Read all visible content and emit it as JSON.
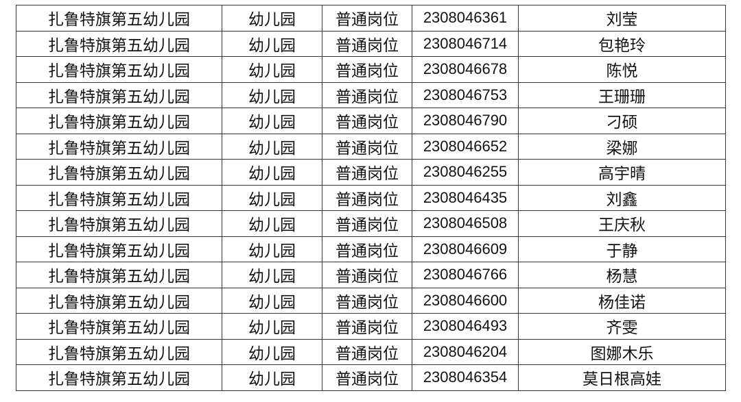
{
  "table": {
    "rows": [
      [
        "扎鲁特旗第五幼儿园",
        "幼儿园",
        "普通岗位",
        "2308046361",
        "刘莹"
      ],
      [
        "扎鲁特旗第五幼儿园",
        "幼儿园",
        "普通岗位",
        "2308046714",
        "包艳玲"
      ],
      [
        "扎鲁特旗第五幼儿园",
        "幼儿园",
        "普通岗位",
        "2308046678",
        "陈悦"
      ],
      [
        "扎鲁特旗第五幼儿园",
        "幼儿园",
        "普通岗位",
        "2308046753",
        "王珊珊"
      ],
      [
        "扎鲁特旗第五幼儿园",
        "幼儿园",
        "普通岗位",
        "2308046790",
        "刁硕"
      ],
      [
        "扎鲁特旗第五幼儿园",
        "幼儿园",
        "普通岗位",
        "2308046652",
        "梁娜"
      ],
      [
        "扎鲁特旗第五幼儿园",
        "幼儿园",
        "普通岗位",
        "2308046255",
        "高宇晴"
      ],
      [
        "扎鲁特旗第五幼儿园",
        "幼儿园",
        "普通岗位",
        "2308046435",
        "刘鑫"
      ],
      [
        "扎鲁特旗第五幼儿园",
        "幼儿园",
        "普通岗位",
        "2308046508",
        "王庆秋"
      ],
      [
        "扎鲁特旗第五幼儿园",
        "幼儿园",
        "普通岗位",
        "2308046609",
        "于静"
      ],
      [
        "扎鲁特旗第五幼儿园",
        "幼儿园",
        "普通岗位",
        "2308046766",
        "杨慧"
      ],
      [
        "扎鲁特旗第五幼儿园",
        "幼儿园",
        "普通岗位",
        "2308046600",
        "杨佳诺"
      ],
      [
        "扎鲁特旗第五幼儿园",
        "幼儿园",
        "普通岗位",
        "2308046493",
        "齐雯"
      ],
      [
        "扎鲁特旗第五幼儿园",
        "幼儿园",
        "普通岗位",
        "2308046204",
        "图娜木乐"
      ],
      [
        "扎鲁特旗第五幼儿园",
        "幼儿园",
        "普通岗位",
        "2308046354",
        "莫日根高娃"
      ]
    ]
  }
}
